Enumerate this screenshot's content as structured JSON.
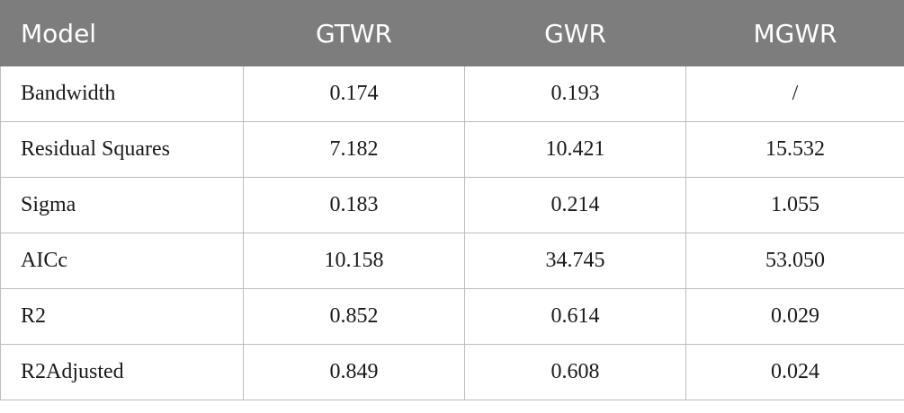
{
  "table": {
    "headers": [
      "Model",
      "GTWR",
      "GWR",
      "MGWR"
    ],
    "rows": [
      [
        "Bandwidth",
        "0.174",
        "0.193",
        "/"
      ],
      [
        "Residual Squares",
        "7.182",
        "10.421",
        "15.532"
      ],
      [
        "Sigma",
        "0.183",
        "0.214",
        "1.055"
      ],
      [
        "AICc",
        "10.158",
        "34.745",
        "53.050"
      ],
      [
        "R2",
        "0.852",
        "0.614",
        "0.029"
      ],
      [
        "R2Adjusted",
        "0.849",
        "0.608",
        "0.024"
      ]
    ]
  },
  "colors": {
    "header_bg": "#7d7d7d",
    "header_text": "#ffffff",
    "border": "#bdbdbd"
  }
}
